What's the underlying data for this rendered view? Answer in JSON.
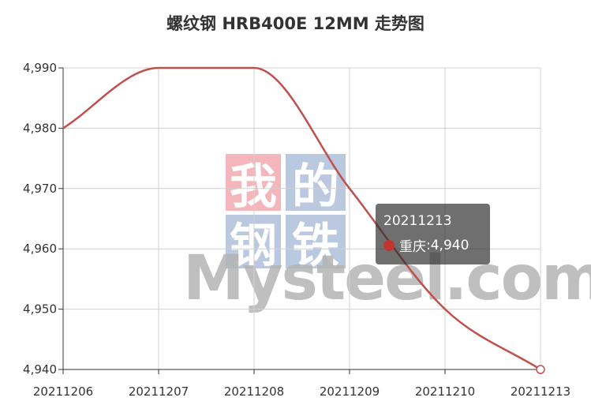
{
  "title": "螺纹钢 HRB400E 12MM 走势图",
  "watermark": {
    "chars": [
      "我",
      "的",
      "钢",
      "铁"
    ],
    "text": "Mysteel.com",
    "colors": [
      "#f2a5ab",
      "#a9bcd9",
      "#a9bcd9",
      "#a9bcd9"
    ]
  },
  "tooltip": {
    "date": "20211213",
    "series": "重庆",
    "value": "4,940",
    "separator": ": ",
    "dot_color": "#c23531"
  },
  "chart_data": {
    "type": "line",
    "x": [
      "20211206",
      "20211207",
      "20211208",
      "20211209",
      "20211210",
      "20211213"
    ],
    "series": [
      {
        "name": "重庆",
        "values": [
          4980,
          4990,
          4990,
          4970,
          4950,
          4940
        ],
        "color": "#c0504d"
      }
    ],
    "y_ticks": [
      "4,940",
      "4,950",
      "4,960",
      "4,970",
      "4,980",
      "4,990"
    ],
    "ylim": [
      4940,
      4990
    ],
    "grid": true,
    "smooth": true
  }
}
